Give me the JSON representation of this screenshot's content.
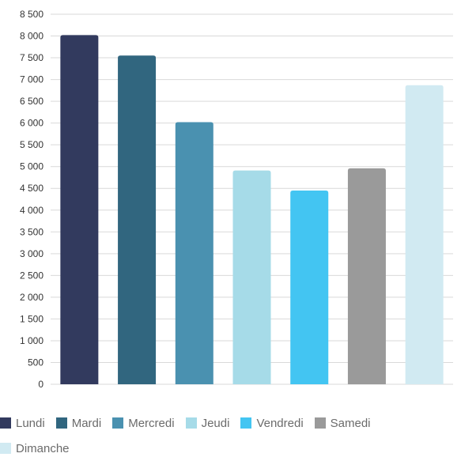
{
  "chart_data": {
    "type": "bar",
    "categories": [
      "Lundi",
      "Mardi",
      "Mercredi",
      "Jeudi",
      "Vendredi",
      "Samedi",
      "Dimanche"
    ],
    "values": [
      8020,
      7550,
      6020,
      4910,
      4450,
      4960,
      6870
    ],
    "colors": [
      "#323a5e",
      "#31667f",
      "#4a91b0",
      "#a6dbe8",
      "#43c5f2",
      "#9a9a9a",
      "#d1eaf2"
    ],
    "yticks": [
      "0",
      "500",
      "1 000",
      "1 500",
      "2 000",
      "2 500",
      "3 000",
      "3 500",
      "4 000",
      "4 500",
      "5 000",
      "5 500",
      "6 000",
      "6 500",
      "7 000",
      "7 500",
      "8 000",
      "8 500"
    ],
    "ylim": [
      0,
      8500
    ],
    "grid": true,
    "legend_position": "bottom"
  },
  "legend": [
    {
      "label": "Lundi",
      "color": "#323a5e"
    },
    {
      "label": "Mardi",
      "color": "#31667f"
    },
    {
      "label": "Mercredi",
      "color": "#4a91b0"
    },
    {
      "label": "Jeudi",
      "color": "#a6dbe8"
    },
    {
      "label": "Vendredi",
      "color": "#43c5f2"
    },
    {
      "label": "Samedi",
      "color": "#9a9a9a"
    },
    {
      "label": "Dimanche",
      "color": "#d1eaf2"
    }
  ]
}
